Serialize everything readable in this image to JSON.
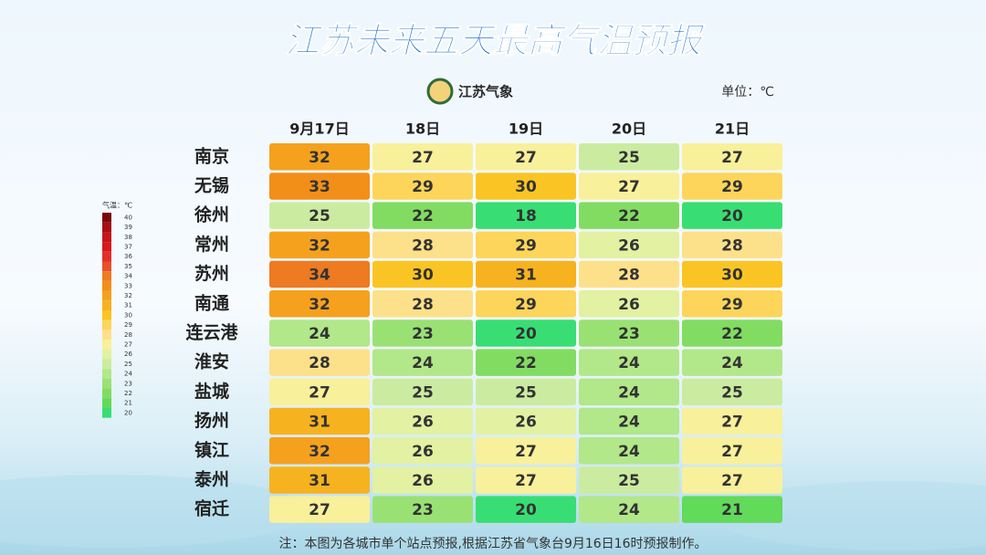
{
  "chart_data": {
    "type": "heatmap",
    "title": "江苏未来五天最高气温预报",
    "source": "江苏气象",
    "unit": "单位：℃",
    "note": "注：本图为各城市单个站点预报,根据江苏省气象台9月16日16时预报制作。",
    "columns": [
      "9月17日",
      "18日",
      "19日",
      "20日",
      "21日"
    ],
    "rows": [
      "南京",
      "无锡",
      "徐州",
      "常州",
      "苏州",
      "南通",
      "连云港",
      "淮安",
      "盐城",
      "扬州",
      "镇江",
      "泰州",
      "宿迁"
    ],
    "values": [
      [
        32,
        27,
        27,
        25,
        27
      ],
      [
        33,
        29,
        30,
        27,
        29
      ],
      [
        25,
        22,
        18,
        22,
        20
      ],
      [
        32,
        28,
        29,
        26,
        28
      ],
      [
        34,
        30,
        31,
        28,
        30
      ],
      [
        32,
        28,
        29,
        26,
        29
      ],
      [
        24,
        23,
        20,
        23,
        22
      ],
      [
        28,
        24,
        22,
        24,
        24
      ],
      [
        27,
        25,
        25,
        24,
        25
      ],
      [
        31,
        26,
        26,
        24,
        27
      ],
      [
        32,
        26,
        27,
        24,
        27
      ],
      [
        31,
        26,
        27,
        25,
        27
      ],
      [
        27,
        23,
        20,
        24,
        21
      ]
    ],
    "legend": {
      "title": "气温：℃",
      "ticks": [
        40,
        39,
        38,
        37,
        36,
        35,
        34,
        33,
        32,
        31,
        30,
        29,
        28,
        27,
        26,
        25,
        24,
        23,
        22,
        21,
        20
      ],
      "colors": [
        "#7a0a0a",
        "#a50f15",
        "#c4161c",
        "#d7191c",
        "#e0302a",
        "#e8502a",
        "#ee7a22",
        "#f28f18",
        "#f5a11e",
        "#f7b21f",
        "#fac524",
        "#fcd55a",
        "#fde08a",
        "#f8f09a",
        "#e2f1a2",
        "#cbeca0",
        "#b2e78a",
        "#9ae174",
        "#82dc62",
        "#62da5a",
        "#38de74"
      ]
    }
  }
}
